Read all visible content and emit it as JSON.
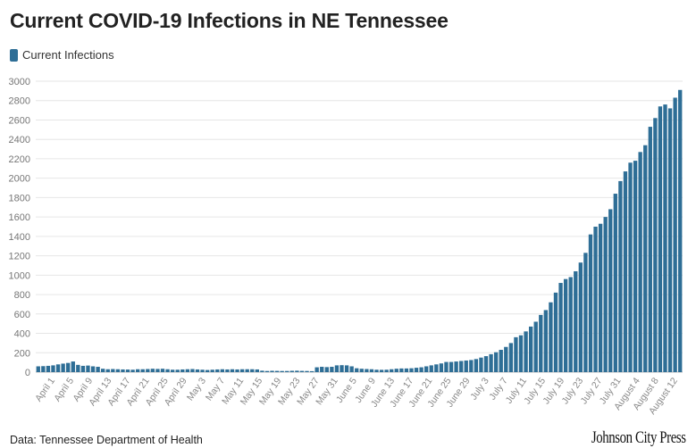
{
  "chart_data": {
    "type": "bar",
    "title": "Current COVID-19 Infections in NE Tennessee",
    "series_name": "Current Infections",
    "color": "#2e6e96",
    "grid_color": "#e6e6e6",
    "ylim": [
      0,
      3000
    ],
    "yticks": [
      0,
      200,
      400,
      600,
      800,
      1000,
      1200,
      1400,
      1600,
      1800,
      2000,
      2200,
      2400,
      2600,
      2800,
      3000
    ],
    "xlabel": "",
    "ylabel": "",
    "tick_labels": [
      "April 1",
      "April 5",
      "April 9",
      "April 13",
      "April 17",
      "April 21",
      "April 25",
      "April 29",
      "May 3",
      "May 7",
      "May 11",
      "May 15",
      "May 19",
      "May 23",
      "May 27",
      "May 31",
      "June 5",
      "June 9",
      "June 13",
      "June 17",
      "June 21",
      "June 25",
      "June 29",
      "July 3",
      "July 7",
      "July 11",
      "July 15",
      "July 19",
      "July 23",
      "July 27",
      "July 31",
      "August 4",
      "August 8",
      "August 12"
    ],
    "values": [
      60,
      62,
      65,
      70,
      80,
      88,
      95,
      110,
      75,
      65,
      68,
      60,
      55,
      35,
      30,
      32,
      30,
      28,
      27,
      25,
      30,
      30,
      32,
      35,
      33,
      35,
      30,
      25,
      25,
      28,
      30,
      32,
      28,
      25,
      22,
      25,
      28,
      30,
      28,
      30,
      28,
      30,
      30,
      30,
      28,
      15,
      12,
      14,
      13,
      12,
      12,
      14,
      15,
      13,
      12,
      10,
      50,
      55,
      52,
      55,
      70,
      72,
      70,
      60,
      40,
      35,
      32,
      30,
      25,
      24,
      25,
      30,
      35,
      38,
      38,
      40,
      45,
      50,
      60,
      70,
      80,
      90,
      105,
      105,
      110,
      115,
      120,
      125,
      135,
      150,
      165,
      185,
      205,
      230,
      260,
      300,
      360,
      380,
      420,
      470,
      520,
      590,
      640,
      720,
      820,
      920,
      960,
      980,
      1040,
      1130,
      1230,
      1420,
      1500,
      1530,
      1600,
      1680,
      1840,
      1970,
      2070,
      2160,
      2180,
      2270,
      2340,
      2530,
      2620,
      2740,
      2760,
      2720,
      2830,
      2910
    ]
  },
  "footer": {
    "source": "Data: Tennessee Department of Health",
    "logo_text": "Johnson City Press"
  }
}
